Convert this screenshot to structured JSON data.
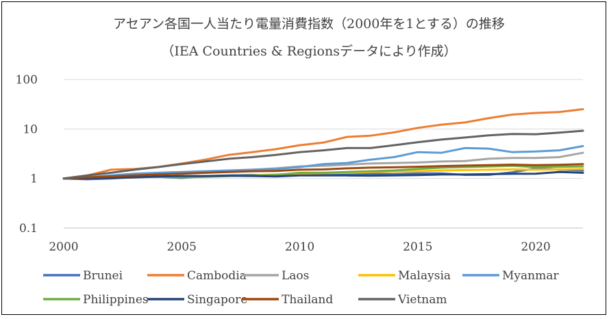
{
  "chart_data": {
    "type": "line",
    "title": "アセアン各国一人当たり電量消費指数（2000年を1とする）の推移",
    "subtitle": "（IEA Countries & Regionsデータにより作成）",
    "xlabel": "",
    "ylabel": "",
    "y_scale": "log",
    "ylim": [
      0.1,
      100
    ],
    "xlim": [
      2000,
      2022
    ],
    "x_ticks": [
      "2000",
      "2005",
      "2010",
      "2015",
      "2020"
    ],
    "y_ticks": [
      "0.1",
      "1",
      "10",
      "100"
    ],
    "grid": "horizontal",
    "legend_position": "bottom",
    "x": [
      2000,
      2001,
      2002,
      2003,
      2004,
      2005,
      2006,
      2007,
      2008,
      2009,
      2010,
      2011,
      2012,
      2013,
      2014,
      2015,
      2016,
      2017,
      2018,
      2019,
      2020,
      2021,
      2022
    ],
    "series": [
      {
        "name": "Brunei",
        "color": "#4472C4",
        "values": [
          1,
          0.96,
          1.0,
          1.06,
          1.08,
          1.02,
          1.12,
          1.15,
          1.18,
          1.13,
          1.2,
          1.22,
          1.23,
          1.25,
          1.23,
          1.27,
          1.27,
          1.18,
          1.18,
          1.33,
          1.6,
          1.5,
          1.45
        ]
      },
      {
        "name": "Cambodia",
        "color": "#ED7D31",
        "values": [
          1,
          1.15,
          1.5,
          1.55,
          1.7,
          2.0,
          2.4,
          3.0,
          3.4,
          3.9,
          4.7,
          5.3,
          6.9,
          7.3,
          8.5,
          10.5,
          12.2,
          13.5,
          16.5,
          19.5,
          21.0,
          22.0,
          25.0
        ]
      },
      {
        "name": "Laos",
        "color": "#A5A5A5",
        "values": [
          1,
          1.05,
          1.1,
          1.15,
          1.2,
          1.25,
          1.3,
          1.4,
          1.5,
          1.6,
          1.75,
          1.8,
          1.9,
          2.0,
          2.05,
          2.1,
          2.2,
          2.25,
          2.5,
          2.6,
          2.6,
          2.7,
          3.3
        ]
      },
      {
        "name": "Malaysia",
        "color": "#FFC000",
        "values": [
          1,
          1.02,
          1.05,
          1.08,
          1.1,
          1.05,
          1.1,
          1.12,
          1.15,
          1.2,
          1.25,
          1.28,
          1.3,
          1.35,
          1.38,
          1.4,
          1.45,
          1.48,
          1.5,
          1.52,
          1.5,
          1.52,
          1.55
        ]
      },
      {
        "name": "Myanmar",
        "color": "#5B9BD5",
        "values": [
          1,
          1.05,
          1.15,
          1.25,
          1.3,
          1.35,
          1.4,
          1.45,
          1.5,
          1.55,
          1.7,
          1.95,
          2.05,
          2.4,
          2.7,
          3.4,
          3.3,
          4.1,
          4.0,
          3.4,
          3.5,
          3.7,
          4.5
        ]
      },
      {
        "name": "Philippines",
        "color": "#70AD47",
        "values": [
          1,
          1.02,
          1.04,
          1.06,
          1.08,
          1.05,
          1.08,
          1.12,
          1.15,
          1.18,
          1.3,
          1.3,
          1.35,
          1.4,
          1.45,
          1.55,
          1.65,
          1.7,
          1.75,
          1.8,
          1.7,
          1.72,
          1.75
        ]
      },
      {
        "name": "Singapore",
        "color": "#264478",
        "values": [
          1,
          1.0,
          1.02,
          1.05,
          1.1,
          1.12,
          1.12,
          1.13,
          1.12,
          1.1,
          1.15,
          1.15,
          1.15,
          1.14,
          1.15,
          1.17,
          1.2,
          1.2,
          1.22,
          1.24,
          1.25,
          1.35,
          1.3
        ]
      },
      {
        "name": "Thailand",
        "color": "#9E480E",
        "values": [
          1,
          1.05,
          1.1,
          1.15,
          1.2,
          1.25,
          1.3,
          1.35,
          1.4,
          1.42,
          1.5,
          1.52,
          1.6,
          1.65,
          1.68,
          1.72,
          1.78,
          1.82,
          1.85,
          1.9,
          1.85,
          1.88,
          1.95
        ]
      },
      {
        "name": "Vietnam",
        "color": "#636363",
        "values": [
          1,
          1.15,
          1.3,
          1.5,
          1.7,
          1.95,
          2.2,
          2.5,
          2.7,
          3.0,
          3.4,
          3.7,
          4.1,
          4.1,
          4.7,
          5.4,
          6.1,
          6.7,
          7.4,
          7.9,
          7.8,
          8.4,
          9.2
        ]
      }
    ]
  }
}
